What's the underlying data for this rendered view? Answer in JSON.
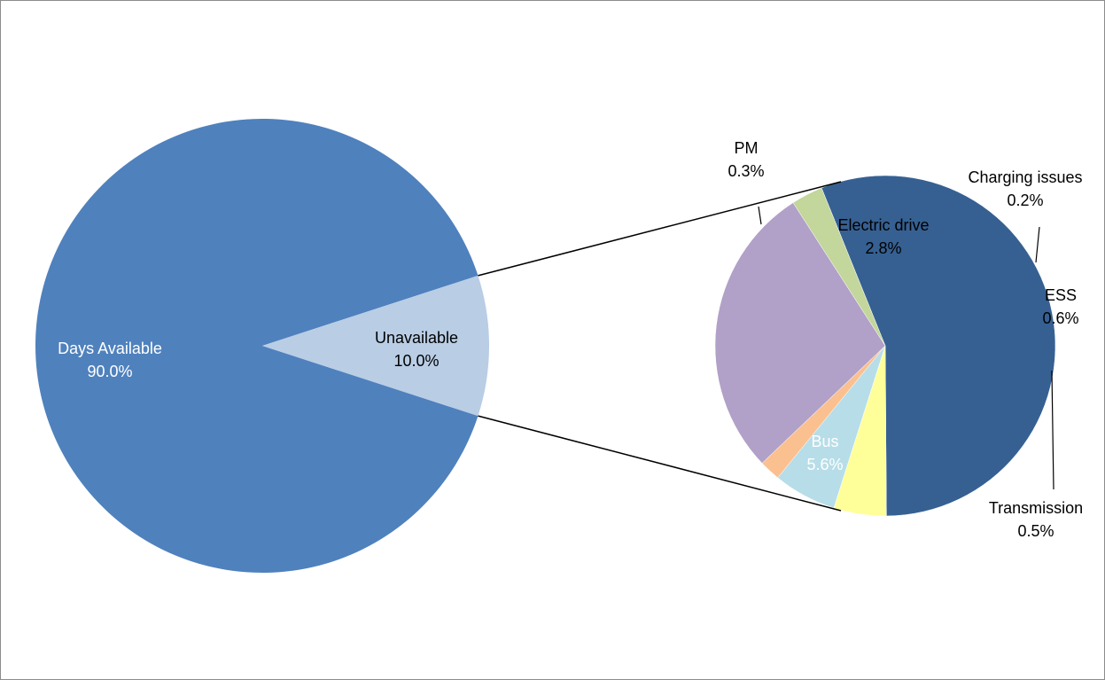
{
  "chart_data": {
    "type": "pie",
    "variant": "pie-of-pie",
    "title": "",
    "primary": {
      "slices": [
        {
          "name": "Days Available",
          "value": 90.0,
          "label": "90.0%",
          "color": "#4f81bd",
          "label_color": "#ffffff"
        },
        {
          "name": "Unavailable",
          "value": 10.0,
          "label": "10.0%",
          "color": "#b9cde5",
          "label_color": "#000000"
        }
      ]
    },
    "secondary": {
      "slices": [
        {
          "name": "Bus",
          "value": 5.6,
          "label": "5.6%",
          "color": "#366092",
          "label_color": "#ffffff"
        },
        {
          "name": "Transmission",
          "value": 0.5,
          "label": "0.5%",
          "color": "#ffff99",
          "label_color": "#000000"
        },
        {
          "name": "ESS",
          "value": 0.6,
          "label": "0.6%",
          "color": "#b7dde8",
          "label_color": "#000000"
        },
        {
          "name": "Charging issues",
          "value": 0.2,
          "label": "0.2%",
          "color": "#fac090",
          "label_color": "#000000"
        },
        {
          "name": "Electric drive",
          "value": 2.8,
          "label": "2.8%",
          "color": "#b1a0c7",
          "label_color": "#000000"
        },
        {
          "name": "PM",
          "value": 0.3,
          "label": "0.3%",
          "color": "#c3d69b",
          "label_color": "#000000"
        }
      ]
    },
    "legend": "none"
  }
}
